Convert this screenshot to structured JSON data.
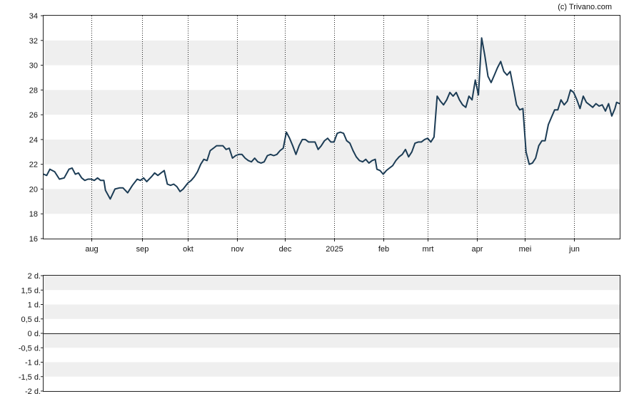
{
  "copyright": "(c) Trivano.com",
  "chart_data": [
    {
      "type": "line",
      "title": "",
      "xlabel": "",
      "ylabel": "",
      "ylim": [
        16,
        34
      ],
      "yticks": [
        "16",
        "18",
        "20",
        "22",
        "24",
        "26",
        "28",
        "30",
        "32",
        "34"
      ],
      "x_range": [
        "2024-07-02",
        "2025-06-30"
      ],
      "x_ticks": [
        {
          "label": "aug",
          "date": "2024-08-01"
        },
        {
          "label": "sep",
          "date": "2024-09-02"
        },
        {
          "label": "okt",
          "date": "2024-10-01"
        },
        {
          "label": "nov",
          "date": "2024-11-01"
        },
        {
          "label": "dec",
          "date": "2024-12-01"
        },
        {
          "label": "2025",
          "date": "2025-01-01"
        },
        {
          "label": "feb",
          "date": "2025-02-01"
        },
        {
          "label": "mrt",
          "date": "2025-03-01"
        },
        {
          "label": "apr",
          "date": "2025-04-01"
        },
        {
          "label": "mei",
          "date": "2025-05-01"
        },
        {
          "label": "jun",
          "date": "2025-06-01"
        }
      ],
      "grid": "horizontal bands, dotted vertical lines at month ticks",
      "legend": "none",
      "line_color": "#1c3c55",
      "band_color": "#efefef",
      "series": [
        {
          "points": [
            [
              "2024-07-02",
              21.2
            ],
            [
              "2024-07-04",
              21.1
            ],
            [
              "2024-07-06",
              21.6
            ],
            [
              "2024-07-09",
              21.4
            ],
            [
              "2024-07-12",
              20.8
            ],
            [
              "2024-07-15",
              20.9
            ],
            [
              "2024-07-18",
              21.6
            ],
            [
              "2024-07-20",
              21.7
            ],
            [
              "2024-07-22",
              21.2
            ],
            [
              "2024-07-24",
              21.3
            ],
            [
              "2024-07-26",
              20.9
            ],
            [
              "2024-07-28",
              20.7
            ],
            [
              "2024-07-30",
              20.8
            ],
            [
              "2024-08-01",
              20.8
            ],
            [
              "2024-08-03",
              20.7
            ],
            [
              "2024-08-05",
              20.9
            ],
            [
              "2024-08-07",
              20.7
            ],
            [
              "2024-08-09",
              20.7
            ],
            [
              "2024-08-10",
              19.9
            ],
            [
              "2024-08-13",
              19.2
            ],
            [
              "2024-08-16",
              20.0
            ],
            [
              "2024-08-19",
              20.1
            ],
            [
              "2024-08-21",
              20.1
            ],
            [
              "2024-08-24",
              19.7
            ],
            [
              "2024-08-27",
              20.3
            ],
            [
              "2024-08-30",
              20.8
            ],
            [
              "2024-09-01",
              20.7
            ],
            [
              "2024-09-03",
              20.9
            ],
            [
              "2024-09-05",
              20.6
            ],
            [
              "2024-09-08",
              21.0
            ],
            [
              "2024-09-10",
              21.3
            ],
            [
              "2024-09-12",
              21.1
            ],
            [
              "2024-09-14",
              21.3
            ],
            [
              "2024-09-16",
              21.5
            ],
            [
              "2024-09-18",
              20.4
            ],
            [
              "2024-09-20",
              20.3
            ],
            [
              "2024-09-22",
              20.4
            ],
            [
              "2024-09-24",
              20.2
            ],
            [
              "2024-09-26",
              19.8
            ],
            [
              "2024-09-28",
              20.0
            ],
            [
              "2024-10-01",
              20.5
            ],
            [
              "2024-10-03",
              20.7
            ],
            [
              "2024-10-05",
              21.0
            ],
            [
              "2024-10-07",
              21.4
            ],
            [
              "2024-10-09",
              22.0
            ],
            [
              "2024-10-11",
              22.4
            ],
            [
              "2024-10-13",
              22.3
            ],
            [
              "2024-10-15",
              23.1
            ],
            [
              "2024-10-17",
              23.3
            ],
            [
              "2024-10-19",
              23.5
            ],
            [
              "2024-10-21",
              23.5
            ],
            [
              "2024-10-23",
              23.5
            ],
            [
              "2024-10-25",
              23.2
            ],
            [
              "2024-10-27",
              23.3
            ],
            [
              "2024-10-29",
              22.5
            ],
            [
              "2024-10-31",
              22.7
            ],
            [
              "2024-11-02",
              22.8
            ],
            [
              "2024-11-04",
              22.8
            ],
            [
              "2024-11-06",
              22.5
            ],
            [
              "2024-11-08",
              22.3
            ],
            [
              "2024-11-10",
              22.2
            ],
            [
              "2024-11-12",
              22.5
            ],
            [
              "2024-11-14",
              22.2
            ],
            [
              "2024-11-16",
              22.1
            ],
            [
              "2024-11-18",
              22.2
            ],
            [
              "2024-11-20",
              22.7
            ],
            [
              "2024-11-22",
              22.8
            ],
            [
              "2024-11-24",
              22.7
            ],
            [
              "2024-11-26",
              22.8
            ],
            [
              "2024-11-28",
              23.1
            ],
            [
              "2024-11-30",
              23.3
            ],
            [
              "2024-12-02",
              24.6
            ],
            [
              "2024-12-04",
              24.1
            ],
            [
              "2024-12-06",
              23.5
            ],
            [
              "2024-12-08",
              22.8
            ],
            [
              "2024-12-10",
              23.5
            ],
            [
              "2024-12-12",
              24.0
            ],
            [
              "2024-12-14",
              24.0
            ],
            [
              "2024-12-16",
              23.8
            ],
            [
              "2024-12-18",
              23.8
            ],
            [
              "2024-12-20",
              23.8
            ],
            [
              "2024-12-22",
              23.2
            ],
            [
              "2024-12-24",
              23.5
            ],
            [
              "2024-12-26",
              23.9
            ],
            [
              "2024-12-28",
              24.1
            ],
            [
              "2024-12-30",
              23.8
            ],
            [
              "2025-01-01",
              23.8
            ],
            [
              "2025-01-03",
              24.5
            ],
            [
              "2025-01-05",
              24.6
            ],
            [
              "2025-01-07",
              24.5
            ],
            [
              "2025-01-09",
              23.9
            ],
            [
              "2025-01-11",
              23.7
            ],
            [
              "2025-01-13",
              23.1
            ],
            [
              "2025-01-15",
              22.6
            ],
            [
              "2025-01-17",
              22.3
            ],
            [
              "2025-01-19",
              22.2
            ],
            [
              "2025-01-21",
              22.4
            ],
            [
              "2025-01-23",
              22.1
            ],
            [
              "2025-01-25",
              22.3
            ],
            [
              "2025-01-27",
              22.4
            ],
            [
              "2025-01-28",
              21.6
            ],
            [
              "2025-01-30",
              21.5
            ],
            [
              "2025-02-01",
              21.2
            ],
            [
              "2025-02-03",
              21.5
            ],
            [
              "2025-02-05",
              21.7
            ],
            [
              "2025-02-07",
              21.9
            ],
            [
              "2025-02-09",
              22.3
            ],
            [
              "2025-02-11",
              22.6
            ],
            [
              "2025-02-13",
              22.8
            ],
            [
              "2025-02-15",
              23.2
            ],
            [
              "2025-02-17",
              22.6
            ],
            [
              "2025-02-19",
              23.0
            ],
            [
              "2025-02-21",
              23.7
            ],
            [
              "2025-02-23",
              23.8
            ],
            [
              "2025-02-25",
              23.8
            ],
            [
              "2025-02-27",
              24.0
            ],
            [
              "2025-03-01",
              24.1
            ],
            [
              "2025-03-03",
              23.8
            ],
            [
              "2025-03-05",
              24.2
            ],
            [
              "2025-03-07",
              27.5
            ],
            [
              "2025-03-09",
              27.1
            ],
            [
              "2025-03-11",
              26.8
            ],
            [
              "2025-03-13",
              27.2
            ],
            [
              "2025-03-15",
              27.8
            ],
            [
              "2025-03-17",
              27.5
            ],
            [
              "2025-03-19",
              27.8
            ],
            [
              "2025-03-21",
              27.2
            ],
            [
              "2025-03-23",
              26.8
            ],
            [
              "2025-03-25",
              26.6
            ],
            [
              "2025-03-27",
              27.5
            ],
            [
              "2025-03-29",
              27.2
            ],
            [
              "2025-03-31",
              28.8
            ],
            [
              "2025-04-02",
              27.6
            ],
            [
              "2025-04-04",
              32.2
            ],
            [
              "2025-04-06",
              30.8
            ],
            [
              "2025-04-08",
              29.1
            ],
            [
              "2025-04-10",
              28.6
            ],
            [
              "2025-04-12",
              29.2
            ],
            [
              "2025-04-14",
              29.8
            ],
            [
              "2025-04-16",
              30.3
            ],
            [
              "2025-04-18",
              29.5
            ],
            [
              "2025-04-20",
              29.2
            ],
            [
              "2025-04-22",
              29.5
            ],
            [
              "2025-04-24",
              28.2
            ],
            [
              "2025-04-26",
              26.8
            ],
            [
              "2025-04-28",
              26.4
            ],
            [
              "2025-04-30",
              26.5
            ],
            [
              "2025-05-02",
              23.0
            ],
            [
              "2025-05-04",
              22.0
            ],
            [
              "2025-05-06",
              22.1
            ],
            [
              "2025-05-08",
              22.5
            ],
            [
              "2025-05-10",
              23.5
            ],
            [
              "2025-05-12",
              23.9
            ],
            [
              "2025-05-14",
              23.9
            ],
            [
              "2025-05-16",
              25.2
            ],
            [
              "2025-05-18",
              25.8
            ],
            [
              "2025-05-20",
              26.4
            ],
            [
              "2025-05-22",
              26.4
            ],
            [
              "2025-05-24",
              27.2
            ],
            [
              "2025-05-26",
              26.8
            ],
            [
              "2025-05-28",
              27.1
            ],
            [
              "2025-05-30",
              28.0
            ],
            [
              "2025-06-01",
              27.8
            ],
            [
              "2025-06-03",
              27.2
            ],
            [
              "2025-06-05",
              26.5
            ],
            [
              "2025-06-07",
              27.5
            ],
            [
              "2025-06-09",
              27.0
            ],
            [
              "2025-06-11",
              26.8
            ],
            [
              "2025-06-13",
              26.6
            ],
            [
              "2025-06-15",
              26.9
            ],
            [
              "2025-06-17",
              26.7
            ],
            [
              "2025-06-19",
              26.8
            ],
            [
              "2025-06-21",
              26.3
            ],
            [
              "2025-06-23",
              26.9
            ],
            [
              "2025-06-25",
              25.9
            ],
            [
              "2025-06-27",
              26.5
            ],
            [
              "2025-06-28",
              27.0
            ],
            [
              "2025-06-30",
              26.9
            ]
          ]
        }
      ]
    },
    {
      "type": "line",
      "title": "",
      "xlabel": "",
      "ylabel": "",
      "ylim": [
        -2,
        2
      ],
      "yticks": [
        "-2 d.",
        "-1,5 d.",
        "-1 d.",
        "-0,5 d.",
        "0 d.",
        "0,5 d.",
        "1 d.",
        "1,5 d.",
        "2 d."
      ],
      "grid": "horizontal bands",
      "legend": "none",
      "baseline": 0,
      "series": []
    }
  ]
}
